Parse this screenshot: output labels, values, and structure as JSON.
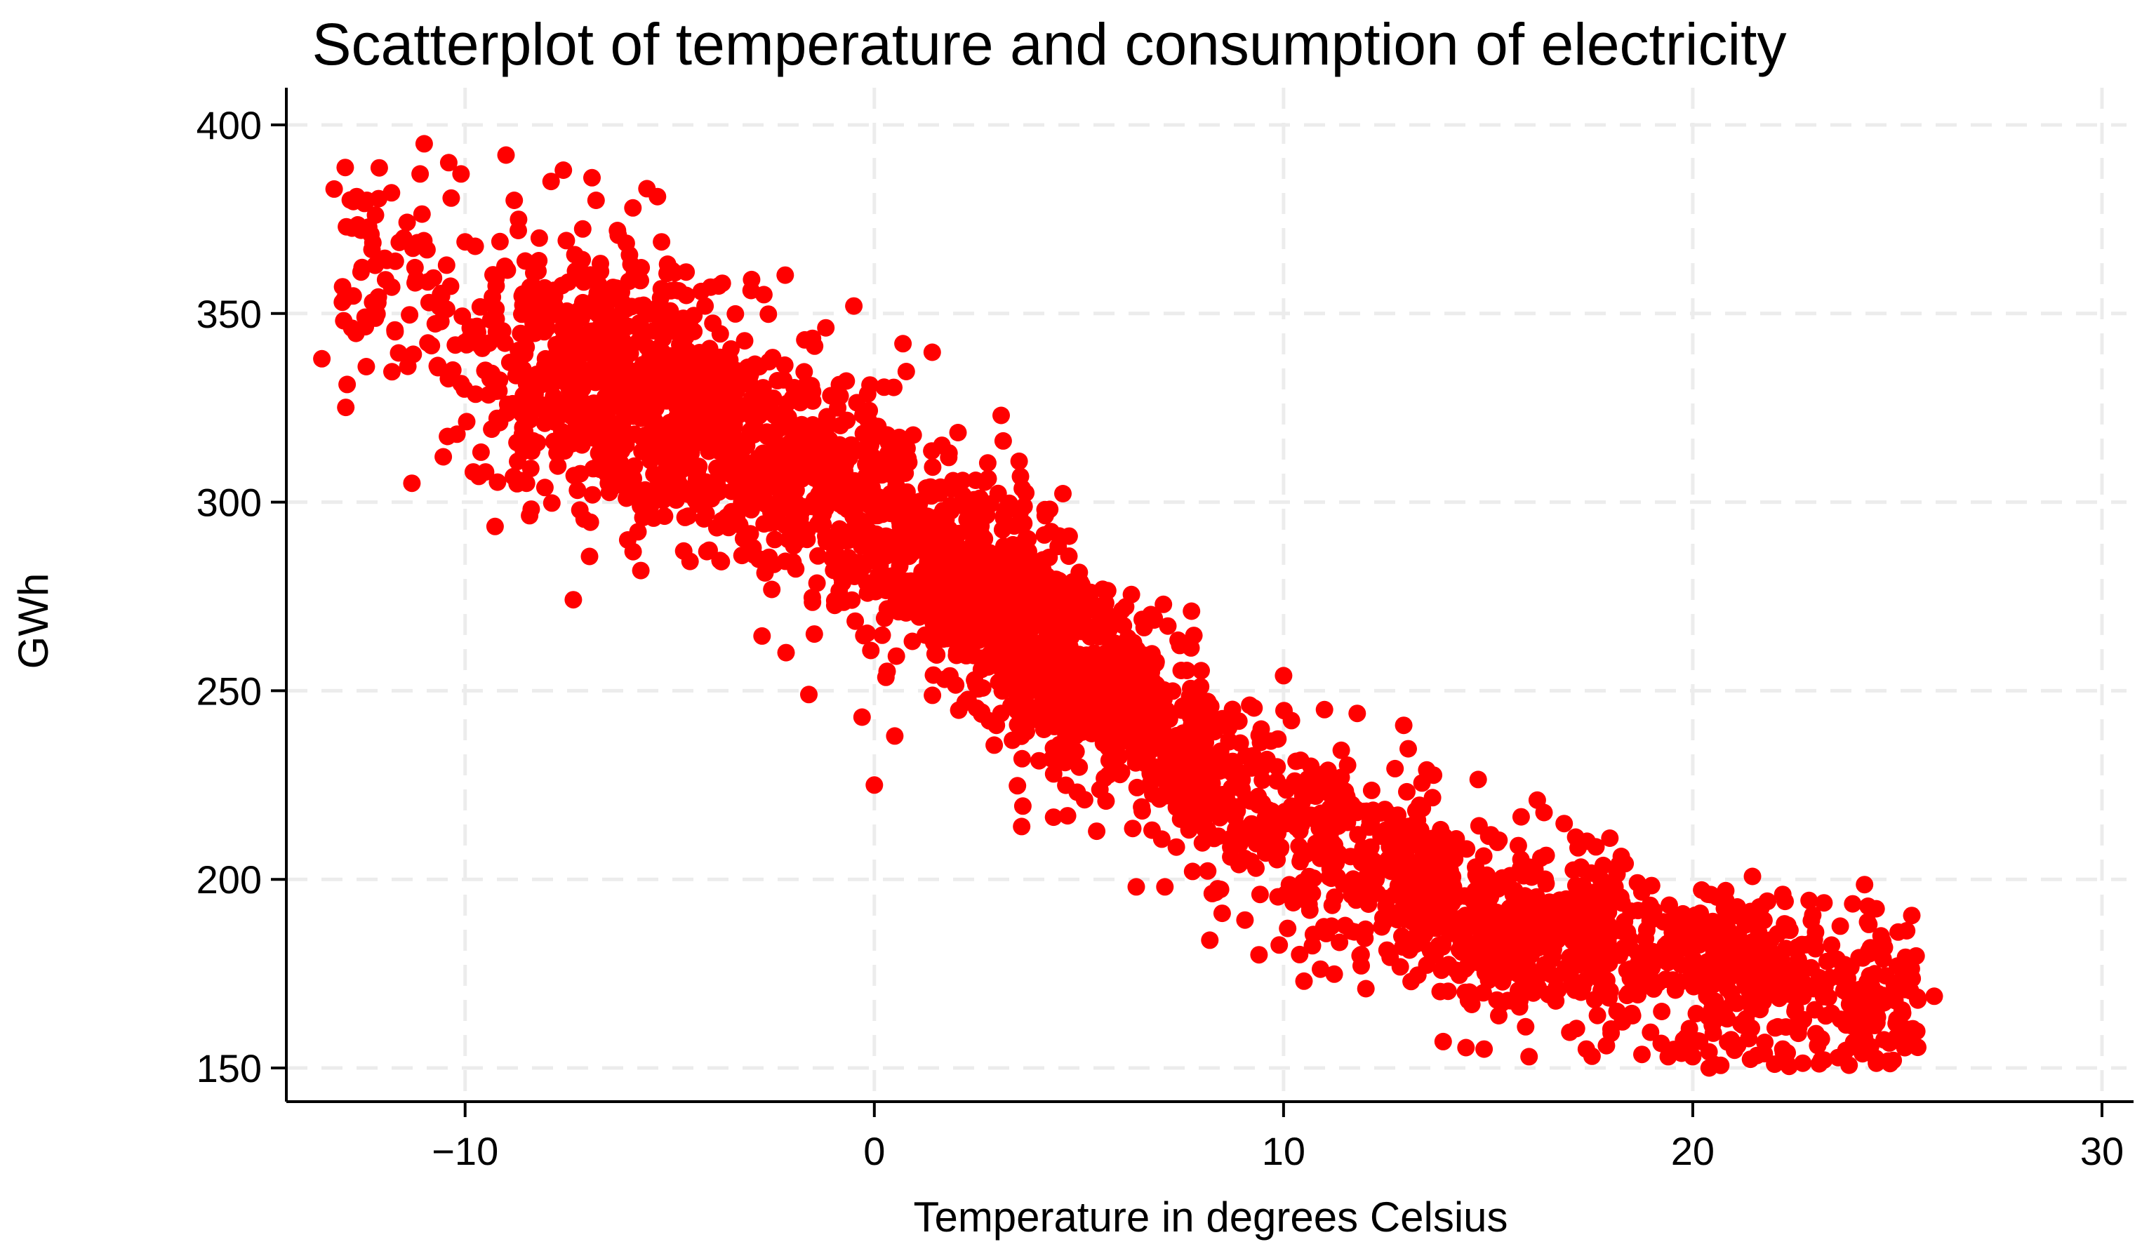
{
  "chart_data": {
    "type": "scatter",
    "title": "Scatterplot of temperature and consumption of electricity",
    "xlabel": "Temperature in degrees Celsius",
    "ylabel": "GWh",
    "xlim": [
      -14.3,
      30.6
    ],
    "ylim": [
      142,
      408
    ],
    "xticks": [
      -10,
      0,
      10,
      20,
      30
    ],
    "yticks": [
      150,
      200,
      250,
      300,
      350,
      400
    ],
    "xtick_labels": [
      "−10",
      "0",
      "10",
      "20",
      "30"
    ],
    "ytick_labels": [
      "150",
      "200",
      "250",
      "300",
      "350",
      "400"
    ],
    "grid": true,
    "marker_color": "#ff0000",
    "n_points_approx": 3600,
    "trend_knots": {
      "x": [
        -14,
        -10,
        -5,
        0,
        5,
        10,
        15,
        20,
        26
      ],
      "y": [
        365,
        345,
        328,
        296,
        256,
        214,
        190,
        176,
        165
      ]
    },
    "series": [
      {
        "name": "observations",
        "points": [
          [
            -13.5,
            338
          ],
          [
            -13.2,
            383
          ],
          [
            -13.0,
            353
          ],
          [
            -12.9,
            373
          ],
          [
            -12.4,
            380
          ],
          [
            -12.3,
            371
          ],
          [
            -11.8,
            382
          ],
          [
            -11.5,
            370
          ],
          [
            -11.4,
            336
          ],
          [
            -11.3,
            305
          ],
          [
            -11.1,
            387
          ],
          [
            -11.0,
            395
          ],
          [
            -10.6,
            355
          ],
          [
            -10.4,
            390
          ],
          [
            -10.1,
            387
          ],
          [
            -10.3,
            335
          ],
          [
            -10.0,
            369
          ],
          [
            -9.8,
            308
          ],
          [
            -9.5,
            308
          ],
          [
            -10.2,
            318
          ],
          [
            -9.0,
            392
          ],
          [
            -8.8,
            380
          ],
          [
            -8.7,
            372
          ],
          [
            -8.5,
            305
          ],
          [
            -8.2,
            364
          ],
          [
            -8.6,
            318
          ],
          [
            -7.9,
            385
          ],
          [
            -7.6,
            388
          ],
          [
            -7.5,
            332
          ],
          [
            -7.2,
            330
          ],
          [
            -6.9,
            386
          ],
          [
            -6.8,
            380
          ],
          [
            -6.7,
            316
          ],
          [
            -6.5,
            305
          ],
          [
            -5.9,
            378
          ],
          [
            -5.3,
            381
          ],
          [
            -5.2,
            369
          ],
          [
            -4.6,
            361
          ],
          [
            -4.0,
            357
          ],
          [
            -3.0,
            359
          ],
          [
            -2.7,
            355
          ],
          [
            -1.7,
            343
          ],
          [
            -0.5,
            352
          ],
          [
            0.7,
            342
          ],
          [
            3.1,
            323
          ],
          [
            -1.6,
            249
          ],
          [
            -0.3,
            243
          ],
          [
            0.0,
            225
          ],
          [
            0.5,
            238
          ],
          [
            3.6,
            214
          ],
          [
            6.4,
            198
          ],
          [
            7.1,
            198
          ],
          [
            8.5,
            191
          ],
          [
            9.4,
            180
          ],
          [
            10.1,
            187
          ],
          [
            10.5,
            173
          ],
          [
            11.0,
            245
          ],
          [
            11.8,
            244
          ],
          [
            10.0,
            254
          ],
          [
            13.5,
            229
          ],
          [
            13.9,
            157
          ],
          [
            14.9,
            155
          ],
          [
            16.0,
            153
          ],
          [
            16.2,
            221
          ],
          [
            17.4,
            155
          ],
          [
            18.2,
            204
          ],
          [
            19.4,
            153
          ],
          [
            20.0,
            153
          ],
          [
            20.4,
            150
          ],
          [
            21.3,
            163
          ],
          [
            22.0,
            151
          ],
          [
            22.2,
            155
          ],
          [
            22.2,
            196
          ],
          [
            23.0,
            186
          ],
          [
            24.2,
            158
          ],
          [
            24.5,
            162
          ],
          [
            24.6,
            185
          ],
          [
            24.9,
            152
          ],
          [
            25.0,
            177
          ],
          [
            25.5,
            168
          ],
          [
            25.9,
            169
          ]
        ]
      }
    ]
  }
}
